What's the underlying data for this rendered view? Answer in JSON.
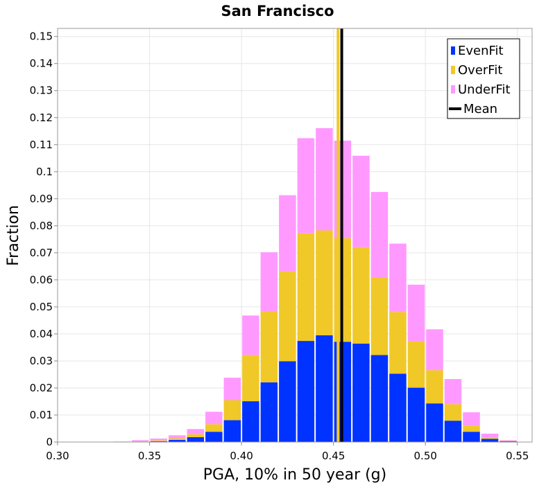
{
  "chart_data": {
    "type": "bar",
    "stacked": true,
    "title": "San Francisco",
    "xlabel": "PGA, 10% in 50 year (g)",
    "ylabel": "Fraction",
    "xlim": [
      0.3,
      0.558
    ],
    "ylim": [
      0,
      0.153
    ],
    "x_ticks": [
      "0.30",
      "0.35",
      "0.40",
      "0.45",
      "0.50",
      "0.55"
    ],
    "y_ticks": [
      "0",
      "0.01",
      "0.02",
      "0.03",
      "0.04",
      "0.05",
      "0.06",
      "0.07",
      "0.08",
      "0.09",
      "0.1",
      "0.11",
      "0.12",
      "0.13",
      "0.14",
      "0.15"
    ],
    "grid": true,
    "legend_position": "top-right",
    "bin_width": 0.01,
    "bin_centers": [
      0.305,
      0.315,
      0.325,
      0.335,
      0.345,
      0.355,
      0.365,
      0.375,
      0.385,
      0.395,
      0.405,
      0.415,
      0.425,
      0.435,
      0.445,
      0.455,
      0.465,
      0.475,
      0.485,
      0.495,
      0.505,
      0.515,
      0.525,
      0.535,
      0.545
    ],
    "series": [
      {
        "name": "EvenFit",
        "color": "#0033ff",
        "values": [
          0.0,
          0.0,
          0.0,
          0.0,
          0.0001,
          0.0003,
          0.0008,
          0.0018,
          0.0038,
          0.0081,
          0.0151,
          0.0221,
          0.0299,
          0.0374,
          0.0395,
          0.0371,
          0.0364,
          0.0322,
          0.0253,
          0.0201,
          0.0143,
          0.0079,
          0.0038,
          0.0012,
          0.0003
        ]
      },
      {
        "name": "OverFit",
        "color": "#f0c828",
        "values": [
          0.0,
          0.0,
          0.0,
          0.0,
          0.0002,
          0.0003,
          0.0006,
          0.0011,
          0.0028,
          0.0074,
          0.0171,
          0.0262,
          0.0333,
          0.0398,
          0.0388,
          0.0383,
          0.0357,
          0.0288,
          0.0228,
          0.0172,
          0.0123,
          0.0061,
          0.0023,
          0.0005,
          0.0001
        ]
      },
      {
        "name": "UnderFit",
        "color": "#ff99ff",
        "values": [
          0.0,
          0.0,
          0.0,
          0.0002,
          0.0004,
          0.0007,
          0.0011,
          0.0019,
          0.0046,
          0.0083,
          0.0146,
          0.0219,
          0.0281,
          0.0352,
          0.0378,
          0.0361,
          0.0338,
          0.0315,
          0.0253,
          0.0209,
          0.0151,
          0.0093,
          0.0049,
          0.0014,
          0.0003
        ]
      }
    ],
    "mean_lines": [
      {
        "name": "OverFit mean",
        "x": 0.4525,
        "color": "#f0c828"
      },
      {
        "name": "Mean",
        "x": 0.4545,
        "color": "#000000"
      }
    ],
    "legend": [
      {
        "label": "EvenFit",
        "color": "#0033ff",
        "kind": "box"
      },
      {
        "label": "OverFit",
        "color": "#f0c828",
        "kind": "box"
      },
      {
        "label": "UnderFit",
        "color": "#ff99ff",
        "kind": "box"
      },
      {
        "label": "Mean",
        "color": "#000000",
        "kind": "line"
      }
    ]
  }
}
